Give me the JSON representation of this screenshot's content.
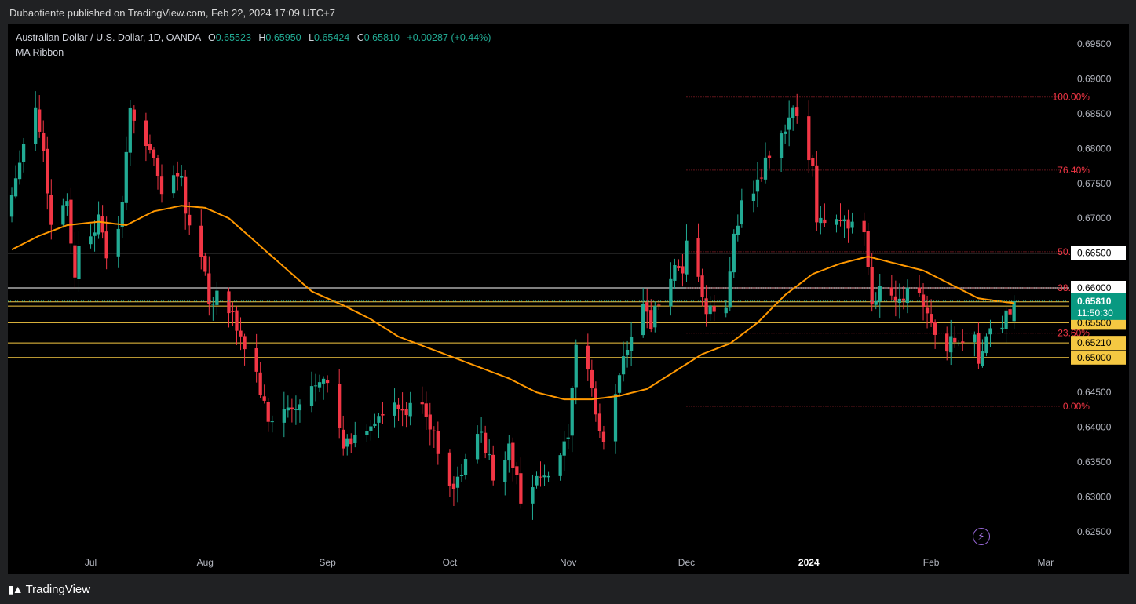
{
  "header": {
    "publisher_line": "Dubaotiente published on TradingView.com, Feb 22, 2024 17:09 UTC+7"
  },
  "legend": {
    "symbol": "Australian Dollar / U.S. Dollar, 1D, OANDA",
    "open_label": "O",
    "open": "0.65523",
    "high_label": "H",
    "high": "0.65950",
    "low_label": "L",
    "low": "0.65424",
    "close_label": "C",
    "close": "0.65810",
    "change": "+0.00287 (+0.44%)",
    "indicator": "MA Ribbon"
  },
  "footer": {
    "brand": "TradingView",
    "logo_icon": "tradingview-logo-icon"
  },
  "colors": {
    "up": "#22ab94",
    "down": "#f23645",
    "ma": "#ff9800",
    "fib": "#f23645",
    "hline_white": "#ffffff",
    "hline_yellow": "#f5c842"
  },
  "chart_data": {
    "type": "candlestick",
    "title": "Australian Dollar / U.S. Dollar, 1D, OANDA",
    "ylim": [
      0.6225,
      0.6975
    ],
    "y_ticks": [
      "0.69500",
      "0.69000",
      "0.68500",
      "0.68000",
      "0.67500",
      "0.67000",
      "0.66500",
      "0.66000",
      "0.65500",
      "0.65000",
      "0.64500",
      "0.64000",
      "0.63500",
      "0.63000",
      "0.62500"
    ],
    "y_tick_values": [
      0.695,
      0.69,
      0.685,
      0.68,
      0.675,
      0.67,
      0.665,
      0.66,
      0.655,
      0.65,
      0.645,
      0.64,
      0.635,
      0.63,
      0.625
    ],
    "x_ticks": [
      {
        "label": "Jul",
        "date": "2023-07-03",
        "bold": false
      },
      {
        "label": "Aug",
        "date": "2023-08-01",
        "bold": false
      },
      {
        "label": "Sep",
        "date": "2023-09-01",
        "bold": false
      },
      {
        "label": "Oct",
        "date": "2023-10-02",
        "bold": false
      },
      {
        "label": "Nov",
        "date": "2023-11-01",
        "bold": false
      },
      {
        "label": "Dec",
        "date": "2023-12-01",
        "bold": false
      },
      {
        "label": "2024",
        "date": "2024-01-01",
        "bold": true
      },
      {
        "label": "Feb",
        "date": "2024-02-01",
        "bold": false
      },
      {
        "label": "Mar",
        "date": "2024-03-01",
        "bold": false
      }
    ],
    "date_range": [
      "2023-06-13",
      "2024-02-22"
    ],
    "x_range": [
      "2023-06-12",
      "2024-03-07"
    ],
    "close_keypoints": [
      [
        "2023-06-13",
        0.6735
      ],
      [
        "2023-06-15",
        0.679
      ],
      [
        "2023-06-19",
        0.686
      ],
      [
        "2023-06-21",
        0.6795
      ],
      [
        "2023-06-23",
        0.669
      ],
      [
        "2023-06-27",
        0.673
      ],
      [
        "2023-06-29",
        0.661
      ],
      [
        "2023-06-30",
        0.6665
      ],
      [
        "2023-07-05",
        0.6695
      ],
      [
        "2023-07-07",
        0.665
      ],
      [
        "2023-07-10",
        0.6675
      ],
      [
        "2023-07-13",
        0.685
      ],
      [
        "2023-07-14",
        0.684
      ],
      [
        "2023-07-18",
        0.68
      ],
      [
        "2023-07-21",
        0.674
      ],
      [
        "2023-07-24",
        0.676
      ],
      [
        "2023-07-26",
        0.677
      ],
      [
        "2023-07-27",
        0.6705
      ],
      [
        "2023-07-28",
        0.67
      ],
      [
        "2023-08-01",
        0.6625
      ],
      [
        "2023-08-02",
        0.6575
      ],
      [
        "2023-08-04",
        0.659
      ],
      [
        "2023-08-08",
        0.6555
      ],
      [
        "2023-08-10",
        0.653
      ],
      [
        "2023-08-14",
        0.6475
      ],
      [
        "2023-08-17",
        0.6405
      ],
      [
        "2023-08-21",
        0.6425
      ],
      [
        "2023-08-24",
        0.642
      ],
      [
        "2023-08-29",
        0.6465
      ],
      [
        "2023-08-31",
        0.648
      ],
      [
        "2023-09-05",
        0.637
      ],
      [
        "2023-09-08",
        0.6385
      ],
      [
        "2023-09-13",
        0.641
      ],
      [
        "2023-09-18",
        0.6425
      ],
      [
        "2023-09-21",
        0.642
      ],
      [
        "2023-09-25",
        0.644
      ],
      [
        "2023-09-28",
        0.6385
      ],
      [
        "2023-10-03",
        0.631
      ],
      [
        "2023-10-06",
        0.635
      ],
      [
        "2023-10-10",
        0.6395
      ],
      [
        "2023-10-13",
        0.633
      ],
      [
        "2023-10-17",
        0.637
      ],
      [
        "2023-10-20",
        0.63
      ],
      [
        "2023-10-25",
        0.633
      ],
      [
        "2023-10-26",
        0.632
      ],
      [
        "2023-10-30",
        0.636
      ],
      [
        "2023-11-01",
        0.638
      ],
      [
        "2023-11-03",
        0.651
      ],
      [
        "2023-11-06",
        0.649
      ],
      [
        "2023-11-08",
        0.642
      ],
      [
        "2023-11-10",
        0.637
      ],
      [
        "2023-11-14",
        0.648
      ],
      [
        "2023-11-16",
        0.652
      ],
      [
        "2023-11-20",
        0.658
      ],
      [
        "2023-11-22",
        0.655
      ],
      [
        "2023-11-24",
        0.658
      ],
      [
        "2023-11-28",
        0.6625
      ],
      [
        "2023-11-30",
        0.661
      ],
      [
        "2023-12-01",
        0.666
      ],
      [
        "2023-12-04",
        0.662
      ],
      [
        "2023-12-06",
        0.656
      ],
      [
        "2023-12-08",
        0.657
      ],
      [
        "2023-12-11",
        0.6565
      ],
      [
        "2023-12-13",
        0.668
      ],
      [
        "2023-12-15",
        0.672
      ],
      [
        "2023-12-19",
        0.6745
      ],
      [
        "2023-12-21",
        0.678
      ],
      [
        "2023-12-26",
        0.6825
      ],
      [
        "2023-12-28",
        0.685
      ],
      [
        "2024-01-02",
        0.678
      ],
      [
        "2024-01-03",
        0.6705
      ],
      [
        "2024-01-05",
        0.669
      ],
      [
        "2024-01-08",
        0.6705
      ],
      [
        "2024-01-11",
        0.669
      ],
      [
        "2024-01-12",
        0.669
      ],
      [
        "2024-01-15",
        0.667
      ],
      [
        "2024-01-17",
        0.6575
      ],
      [
        "2024-01-19",
        0.66
      ],
      [
        "2024-01-22",
        0.659
      ],
      [
        "2024-01-25",
        0.659
      ],
      [
        "2024-01-26",
        0.6605
      ],
      [
        "2024-01-29",
        0.6595
      ],
      [
        "2024-01-31",
        0.6565
      ],
      [
        "2024-02-01",
        0.6545
      ],
      [
        "2024-02-05",
        0.6515
      ],
      [
        "2024-02-07",
        0.653
      ],
      [
        "2024-02-08",
        0.6525
      ],
      [
        "2024-02-09",
        0.652
      ],
      [
        "2024-02-12",
        0.6535
      ],
      [
        "2024-02-13",
        0.6495
      ],
      [
        "2024-02-14",
        0.651
      ],
      [
        "2024-02-15",
        0.6525
      ],
      [
        "2024-02-19",
        0.655
      ],
      [
        "2024-02-20",
        0.656
      ],
      [
        "2024-02-21",
        0.6552
      ],
      [
        "2024-02-22",
        0.6581
      ]
    ],
    "moving_average": [
      [
        "2023-06-13",
        0.6655
      ],
      [
        "2023-06-20",
        0.6675
      ],
      [
        "2023-06-27",
        0.669
      ],
      [
        "2023-07-05",
        0.6695
      ],
      [
        "2023-07-12",
        0.669
      ],
      [
        "2023-07-19",
        0.671
      ],
      [
        "2023-07-26",
        0.6718
      ],
      [
        "2023-08-01",
        0.6715
      ],
      [
        "2023-08-07",
        0.67
      ],
      [
        "2023-08-14",
        0.6665
      ],
      [
        "2023-08-21",
        0.663
      ],
      [
        "2023-08-28",
        0.6595
      ],
      [
        "2023-09-05",
        0.6575
      ],
      [
        "2023-09-12",
        0.6555
      ],
      [
        "2023-09-19",
        0.653
      ],
      [
        "2023-09-26",
        0.6515
      ],
      [
        "2023-10-03",
        0.65
      ],
      [
        "2023-10-10",
        0.6485
      ],
      [
        "2023-10-17",
        0.647
      ],
      [
        "2023-10-24",
        0.645
      ],
      [
        "2023-10-31",
        0.644
      ],
      [
        "2023-11-07",
        0.644
      ],
      [
        "2023-11-14",
        0.6445
      ],
      [
        "2023-11-21",
        0.6455
      ],
      [
        "2023-11-28",
        0.648
      ],
      [
        "2023-12-05",
        0.6505
      ],
      [
        "2023-12-12",
        0.652
      ],
      [
        "2023-12-19",
        0.655
      ],
      [
        "2023-12-26",
        0.659
      ],
      [
        "2024-01-02",
        0.662
      ],
      [
        "2024-01-09",
        0.6635
      ],
      [
        "2024-01-16",
        0.6645
      ],
      [
        "2024-01-23",
        0.6635
      ],
      [
        "2024-01-30",
        0.6625
      ],
      [
        "2024-02-06",
        0.6605
      ],
      [
        "2024-02-13",
        0.6585
      ],
      [
        "2024-02-22",
        0.6578
      ]
    ],
    "fibonacci": {
      "date_start": "2023-12-01",
      "date_end": "2024-02-22",
      "levels": [
        {
          "label": "100.00%",
          "price": 0.6874
        },
        {
          "label": "76.40%",
          "price": 0.6769
        },
        {
          "label": "50.00%",
          "price": 0.6652
        },
        {
          "label": "38.20%",
          "price": 0.66
        },
        {
          "label": "23.60%",
          "price": 0.6535
        },
        {
          "label": "0.00%",
          "price": 0.643
        }
      ]
    },
    "horizontal_lines": [
      {
        "price": 0.665,
        "color": "white",
        "label": "0.66500"
      },
      {
        "price": 0.66,
        "color": "white",
        "label": "0.66000"
      },
      {
        "price": 0.658,
        "color": "yellow",
        "label": "0.65800"
      },
      {
        "price": 0.6574,
        "color": "yellow",
        "label": "0.65740"
      },
      {
        "price": 0.655,
        "color": "yellow",
        "label": "0.65500"
      },
      {
        "price": 0.6521,
        "color": "yellow",
        "label": "0.65210"
      },
      {
        "price": 0.65,
        "color": "yellow",
        "label": "0.65000"
      }
    ],
    "current_price": {
      "price": 0.6581,
      "label": "0.65810",
      "countdown": "11:50:30"
    }
  }
}
